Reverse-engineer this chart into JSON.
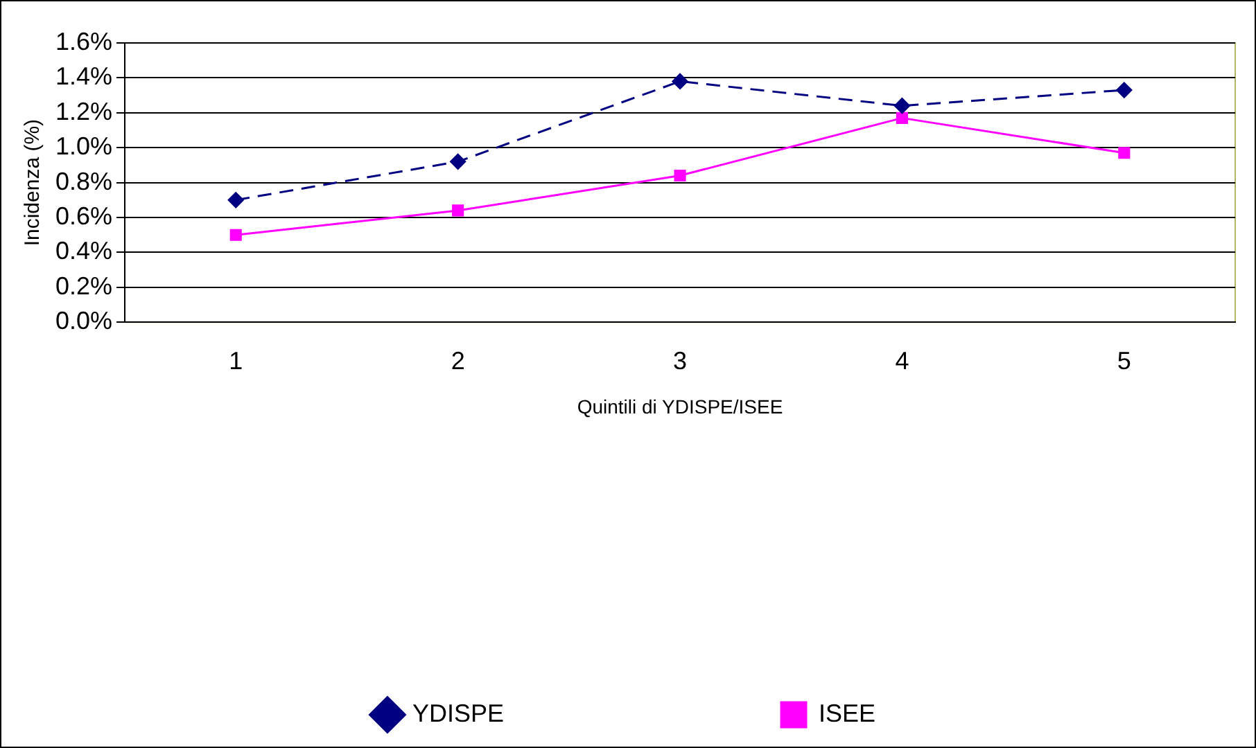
{
  "chart_data": {
    "type": "line",
    "xlabel": "Quintili di YDISPE/ISEE",
    "ylabel": "Incidenza (%)",
    "categories": [
      "1",
      "2",
      "3",
      "4",
      "5"
    ],
    "series": [
      {
        "name": "YDISPE",
        "color": "#000080",
        "values": [
          0.7,
          0.92,
          1.38,
          1.24,
          1.33
        ],
        "marker": "diamond",
        "line_style": "dashed"
      },
      {
        "name": "ISEE",
        "color": "#ff00ff",
        "values": [
          0.5,
          0.64,
          0.84,
          1.17,
          0.97
        ],
        "marker": "square",
        "line_style": "solid"
      }
    ],
    "ylim": [
      0,
      1.6
    ],
    "yticks": [
      {
        "value": 0,
        "label": "0.0%"
      },
      {
        "value": 0.2,
        "label": "0.2%"
      },
      {
        "value": 0.4,
        "label": "0.4%"
      },
      {
        "value": 0.6,
        "label": "0.6%"
      },
      {
        "value": 0.8,
        "label": "0.8%"
      },
      {
        "value": 1.0,
        "label": "1.0%"
      },
      {
        "value": 1.2,
        "label": "1.2%"
      },
      {
        "value": 1.4,
        "label": "1.4%"
      },
      {
        "value": 1.6,
        "label": "1.6%"
      }
    ],
    "grid": "y",
    "legend": "bottom"
  }
}
